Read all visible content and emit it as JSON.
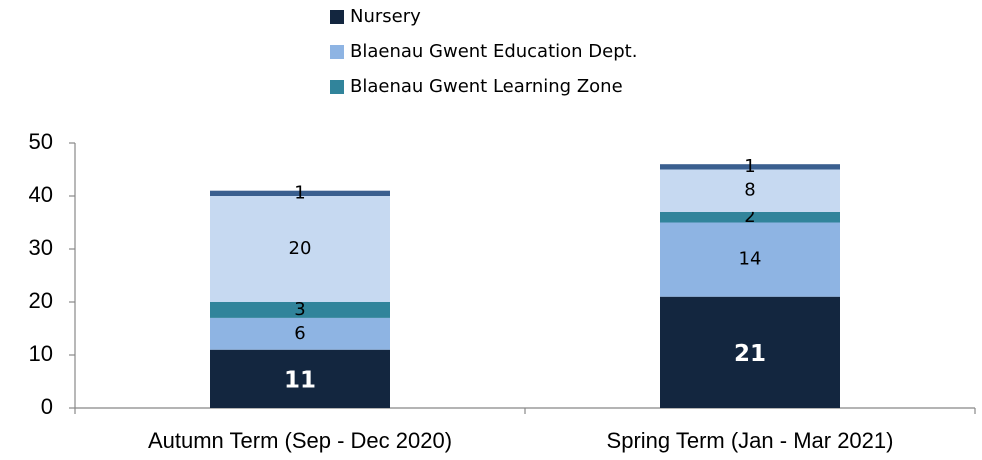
{
  "chart_data": {
    "type": "stacked_bar",
    "categories": [
      "Autumn Term (Sep - Dec 2020)",
      "Spring Term (Jan - Mar 2021)"
    ],
    "series": [
      {
        "name": "Nursery",
        "color": "#13263f",
        "values": [
          11,
          21
        ]
      },
      {
        "name": "Blaenau Gwent Education Dept.",
        "color": "#8eb4e3",
        "values": [
          6,
          14
        ]
      },
      {
        "name": "Blaenau Gwent Learning Zone",
        "color": "#31849b",
        "values": [
          3,
          2
        ]
      },
      {
        "name": null,
        "color": "#c6d9f1",
        "values": [
          20,
          8
        ]
      },
      {
        "name": null,
        "color": "#3a5f8f",
        "values": [
          1,
          1
        ]
      }
    ],
    "ylim": [
      0,
      50
    ],
    "yticks": [
      0,
      10,
      20,
      30,
      40,
      50
    ],
    "legend": "top"
  }
}
